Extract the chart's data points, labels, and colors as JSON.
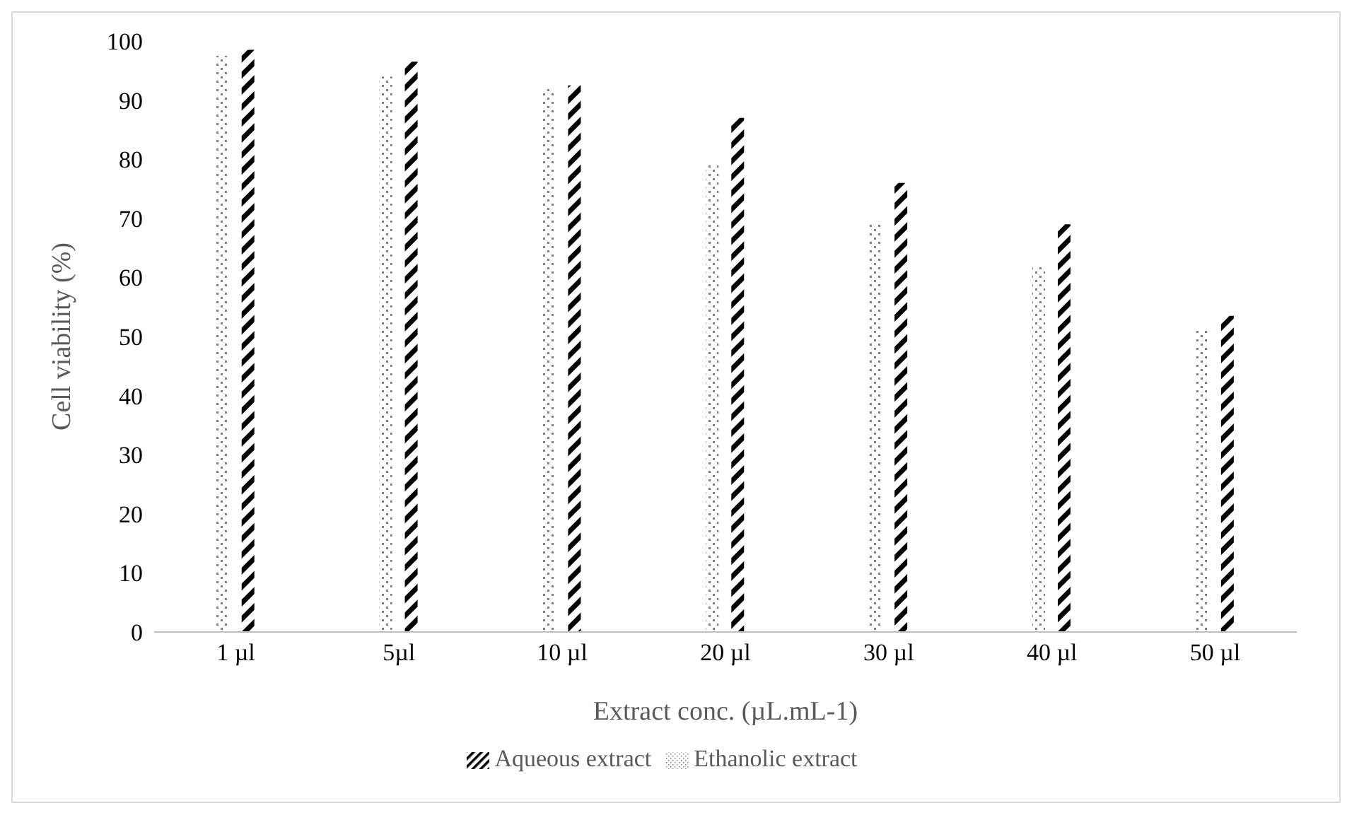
{
  "chart_data": {
    "type": "bar",
    "xlabel": "Extract conc. (µL.mL-1)",
    "ylabel": "Cell viability (%)",
    "categories": [
      "1 µl",
      "5µl",
      "10 µl",
      "20 µl",
      "30 µl",
      "40 µl",
      "50 µl"
    ],
    "series": [
      {
        "name": "Ethanolic extract",
        "color": "#808080",
        "values": [
          97.5,
          94,
          92,
          79,
          69,
          62,
          51
        ]
      },
      {
        "name": "Aqueous extract",
        "color": "#000000",
        "values": [
          98.5,
          96.5,
          92.5,
          87,
          76,
          69,
          53.5
        ]
      }
    ],
    "ylim": [
      0,
      100
    ],
    "yticks": [
      0,
      10,
      20,
      30,
      40,
      50,
      60,
      70,
      80,
      90,
      100
    ],
    "grid": false,
    "legend": "bottom"
  }
}
